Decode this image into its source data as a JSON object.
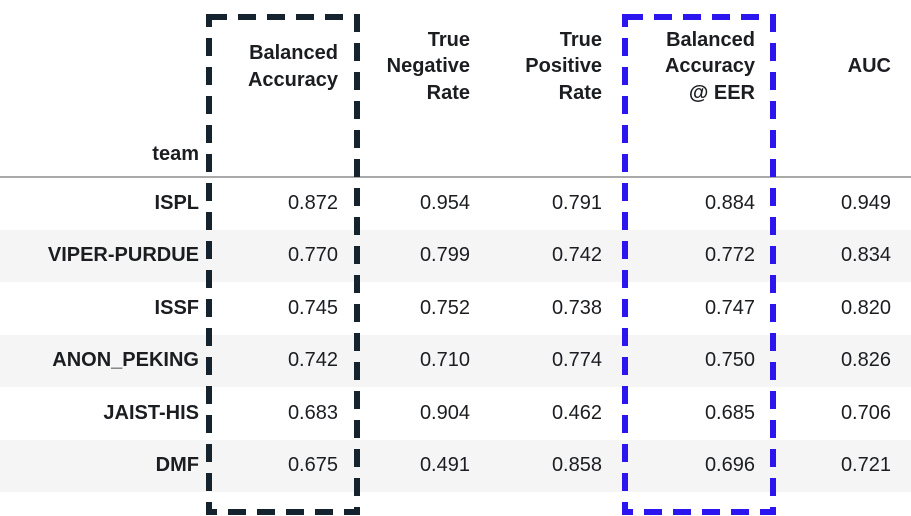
{
  "table": {
    "index_label": "team",
    "columns": [
      {
        "label": "Balanced Accuracy",
        "lines": [
          "Balanced",
          "Accuracy"
        ]
      },
      {
        "label": "True Negative Rate",
        "lines": [
          "True",
          "Negative",
          "Rate"
        ]
      },
      {
        "label": "True Positive Rate",
        "lines": [
          "True",
          "Positive",
          "Rate"
        ]
      },
      {
        "label": "Balanced Accuracy @ EER",
        "lines": [
          "Balanced",
          "Accuracy",
          "@ EER"
        ]
      },
      {
        "label": "AUC",
        "lines": [
          "AUC"
        ]
      }
    ],
    "rows": [
      {
        "team": "ISPL",
        "values": [
          "0.872",
          "0.954",
          "0.791",
          "0.884",
          "0.949"
        ]
      },
      {
        "team": "VIPER-PURDUE",
        "values": [
          "0.770",
          "0.799",
          "0.742",
          "0.772",
          "0.834"
        ]
      },
      {
        "team": "ISSF",
        "values": [
          "0.745",
          "0.752",
          "0.738",
          "0.747",
          "0.820"
        ]
      },
      {
        "team": "ANON_PEKING",
        "values": [
          "0.742",
          "0.710",
          "0.774",
          "0.750",
          "0.826"
        ]
      },
      {
        "team": "JAIST-HIS",
        "values": [
          "0.683",
          "0.904",
          "0.462",
          "0.685",
          "0.706"
        ]
      },
      {
        "team": "DMF",
        "values": [
          "0.675",
          "0.491",
          "0.858",
          "0.696",
          "0.721"
        ]
      }
    ]
  },
  "highlight_boxes": {
    "primary": {
      "column": "Balanced Accuracy",
      "color": "#15232E"
    },
    "secondary": {
      "column": "Balanced Accuracy @ EER",
      "color": "#2B16EF"
    }
  },
  "colors": {
    "row_stripe": "#F5F5F6",
    "header_separator": "#A9A9A9",
    "text": "#1B1D21",
    "background": "#FFFFFF"
  },
  "chart_data": {
    "type": "table",
    "title": "",
    "index_label": "team",
    "categories": [
      "ISPL",
      "VIPER-PURDUE",
      "ISSF",
      "ANON_PEKING",
      "JAIST-HIS",
      "DMF"
    ],
    "series": [
      {
        "name": "Balanced Accuracy",
        "values": [
          0.872,
          0.77,
          0.745,
          0.742,
          0.683,
          0.675
        ]
      },
      {
        "name": "True Negative Rate",
        "values": [
          0.954,
          0.799,
          0.752,
          0.71,
          0.904,
          0.491
        ]
      },
      {
        "name": "True Positive Rate",
        "values": [
          0.791,
          0.742,
          0.738,
          0.774,
          0.462,
          0.858
        ]
      },
      {
        "name": "Balanced Accuracy @ EER",
        "values": [
          0.884,
          0.772,
          0.747,
          0.75,
          0.685,
          0.696
        ]
      },
      {
        "name": "AUC",
        "values": [
          0.949,
          0.834,
          0.82,
          0.826,
          0.706,
          0.721
        ]
      }
    ],
    "highlighted_columns": [
      "Balanced Accuracy",
      "Balanced Accuracy @ EER"
    ],
    "layout_hints": {
      "value_alignment": "right",
      "row_striping": true,
      "grid": false
    }
  }
}
